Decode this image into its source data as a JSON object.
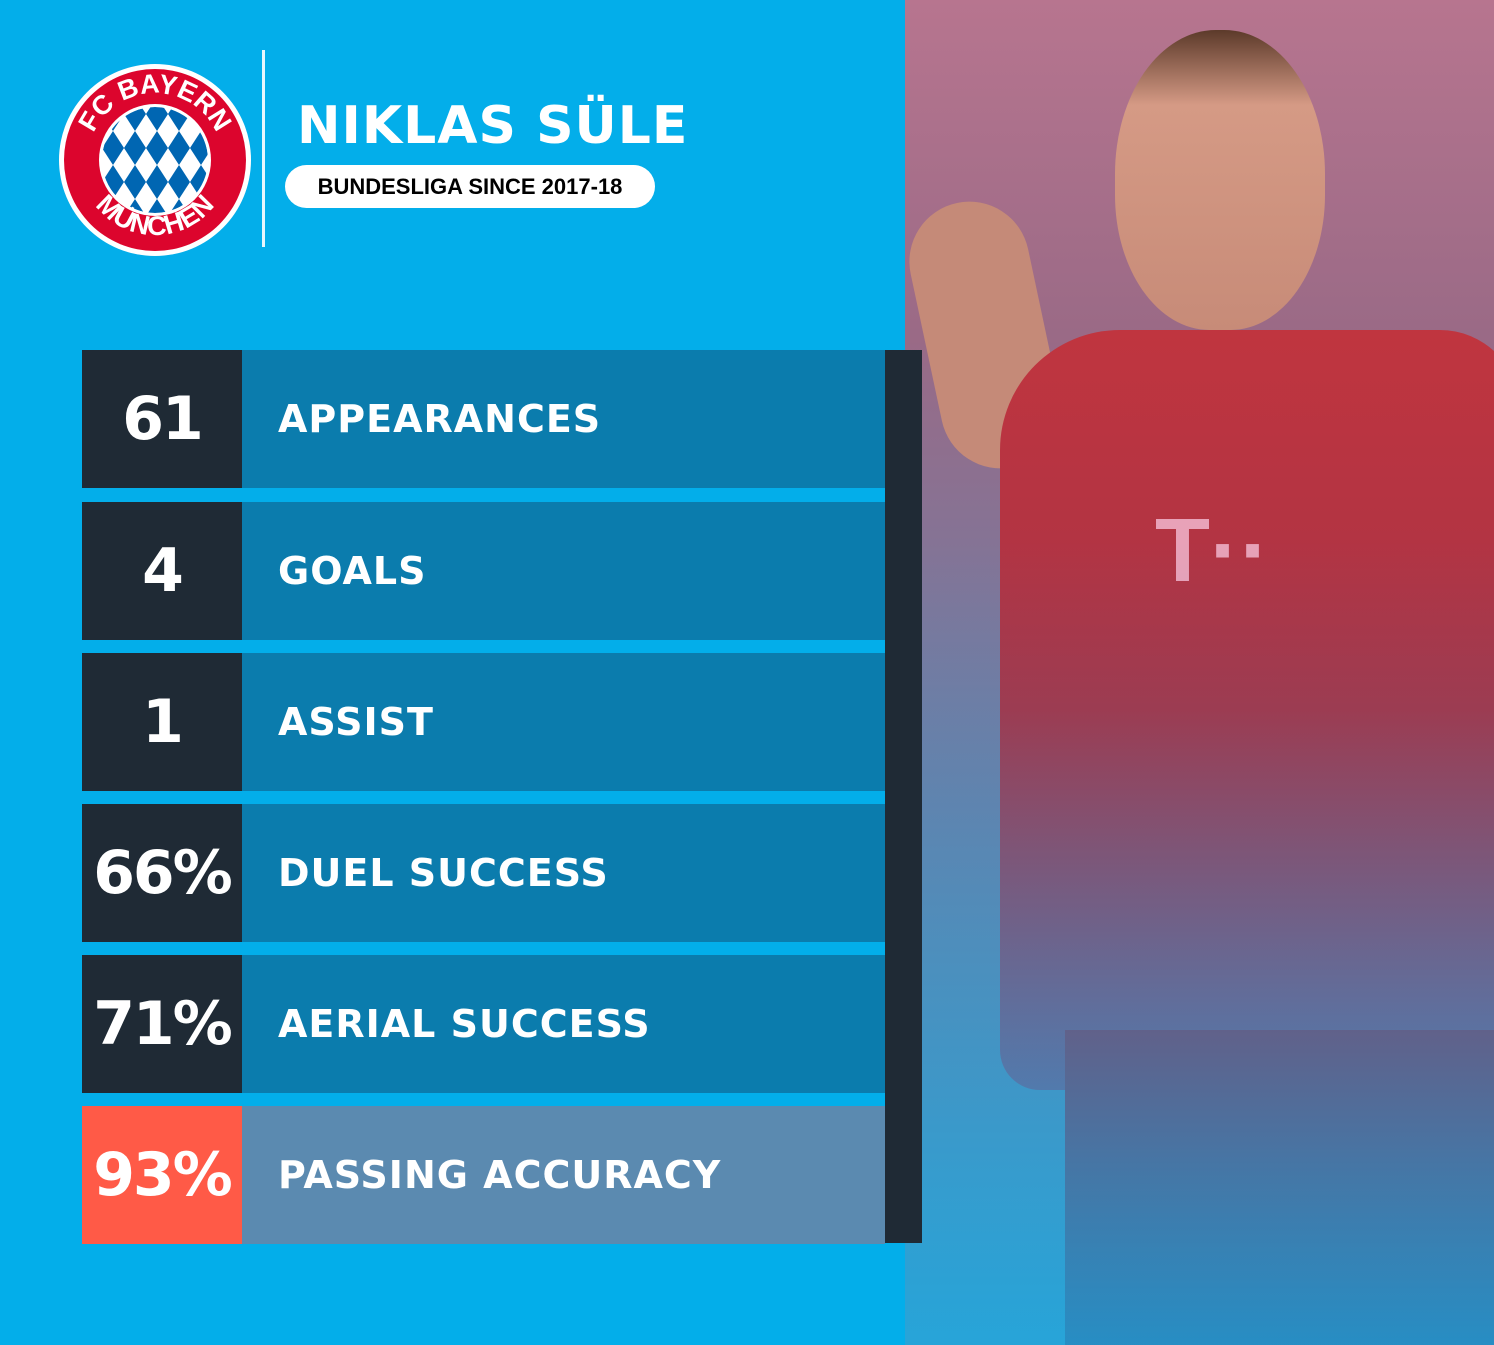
{
  "logo": {
    "top_text": "FC BAYERN",
    "bottom_text": "MÜNCHEN"
  },
  "player": {
    "name": "NIKLAS SÜLE",
    "subtitle": "BUNDESLIGA SINCE 2017-18"
  },
  "stats": [
    {
      "value": "61",
      "label": "APPEARANCES"
    },
    {
      "value": "4",
      "label": "GOALS"
    },
    {
      "value": "1",
      "label": "ASSIST"
    },
    {
      "value": "66%",
      "label": "DUEL SUCCESS"
    },
    {
      "value": "71%",
      "label": "AERIAL SUCCESS"
    },
    {
      "value": "93%",
      "label": "PASSING ACCURACY",
      "highlighted": true
    }
  ],
  "colors": {
    "background": "#03aeea",
    "dark": "#1f2a35",
    "row": "#0b7cad",
    "highlight": "#ff5a47",
    "highlight_row": "#5b8ab0"
  }
}
